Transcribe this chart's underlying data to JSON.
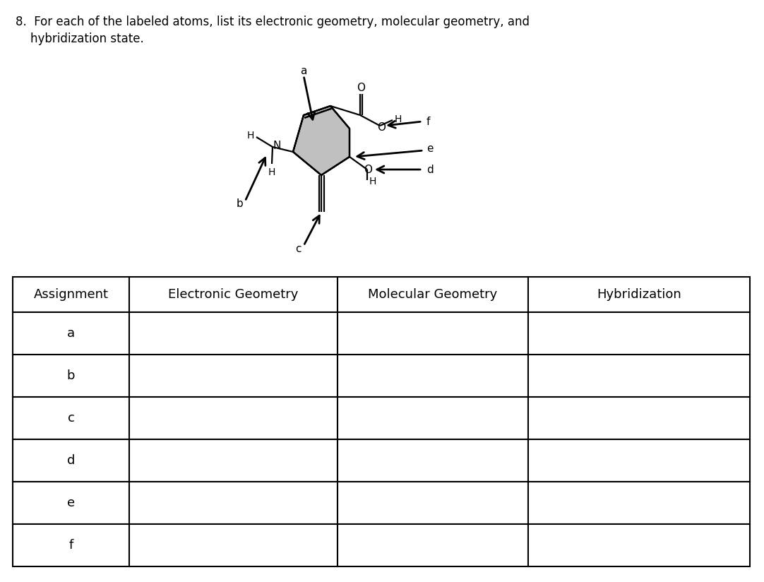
{
  "question_text_line1": "8.  For each of the labeled atoms, list its electronic geometry, molecular geometry, and",
  "question_text_line2": "    hybridization state.",
  "table_headers": [
    "Assignment",
    "Electronic Geometry",
    "Molecular Geometry",
    "Hybridization"
  ],
  "table_rows": [
    "a",
    "b",
    "c",
    "d",
    "e",
    "f"
  ],
  "bg_color": "#ffffff",
  "text_color": "#000000",
  "font_size_question": 12,
  "font_size_table": 13,
  "font_size_molecule": 12
}
